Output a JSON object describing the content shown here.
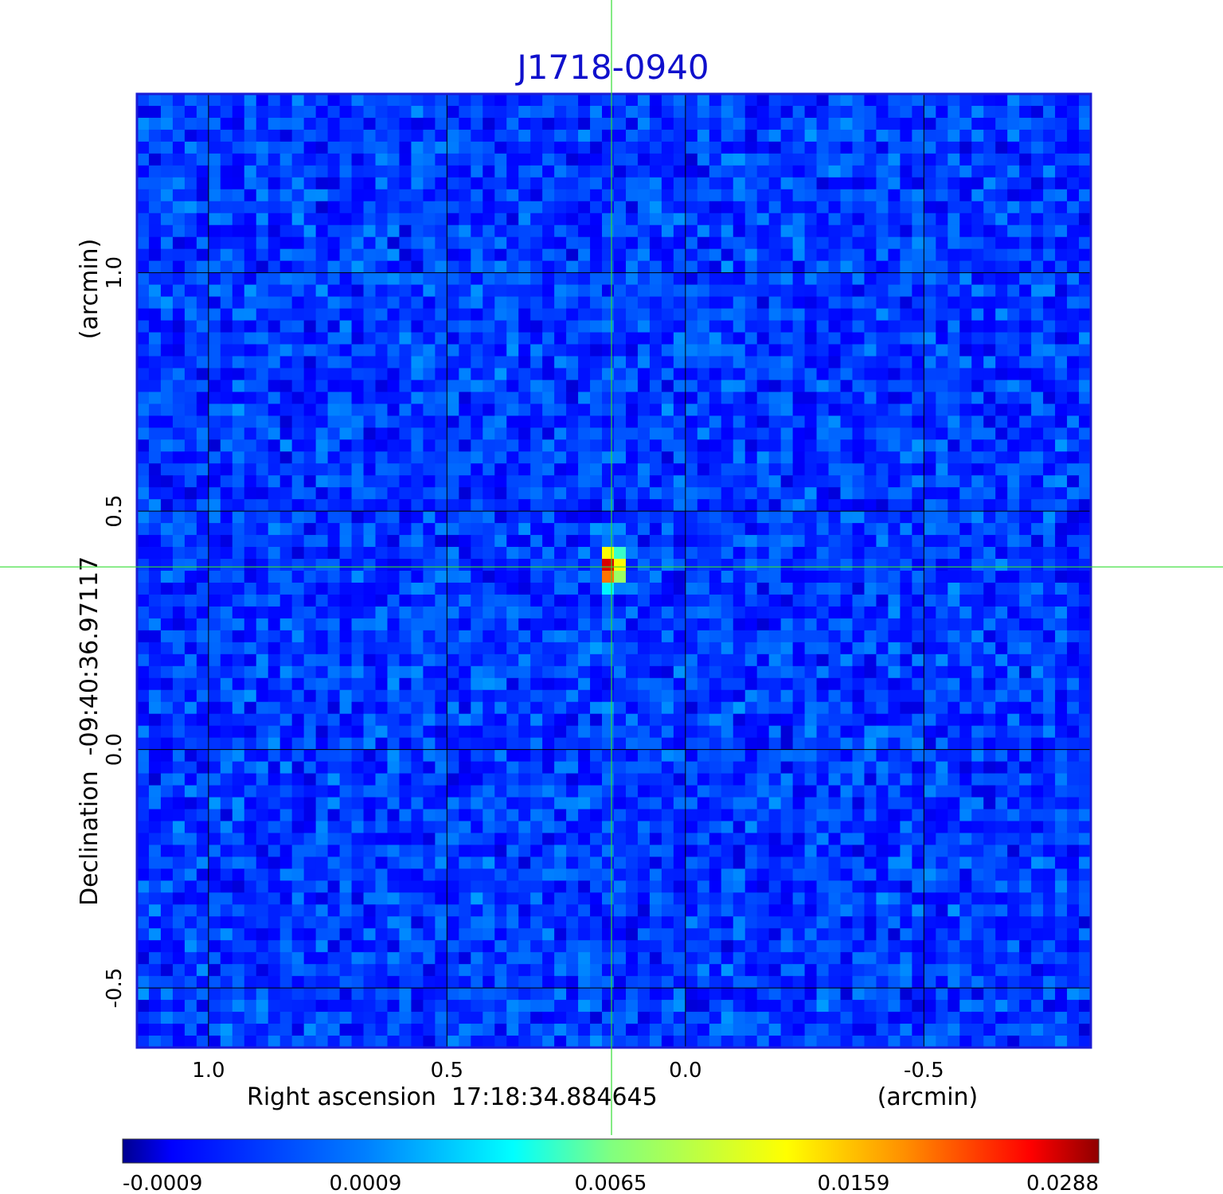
{
  "chart_data": {
    "type": "heatmap",
    "title": "J1718-0940",
    "xlabel": "Right ascension  17:18:34.884645",
    "xunit": "(arcmin)",
    "ylabel": "Declination  -09:40:36.97117",
    "yunit": "(arcmin)",
    "x_ticks": [
      "1.0",
      "0.5",
      "0.0",
      "-0.5"
    ],
    "y_ticks": [
      "1.0",
      "0.5",
      "0.0",
      "-0.5"
    ],
    "x_tick_values": [
      1.0,
      0.5,
      0.0,
      -0.5
    ],
    "y_tick_values": [
      1.0,
      0.5,
      0.0,
      -0.5
    ],
    "xlim": [
      1.15,
      -0.85
    ],
    "ylim": [
      -0.625,
      1.375
    ],
    "grid": true,
    "crosshair": {
      "x": 0.155,
      "y": 0.383
    },
    "source_peak": {
      "x": 0.155,
      "y": 0.383,
      "value": 0.0288
    },
    "grid_size": [
      80,
      80
    ],
    "colorbar": {
      "colormap": "jet",
      "tick_labels": [
        "-0.0009",
        "0.0009",
        "0.0065",
        "0.0159",
        "0.0288"
      ],
      "min": -0.0009,
      "max": 0.0288
    },
    "colors": {
      "title": "#1010cc",
      "crosshair": "#33dd33",
      "frame": "#1b1bd6",
      "grid": "#000000"
    }
  }
}
